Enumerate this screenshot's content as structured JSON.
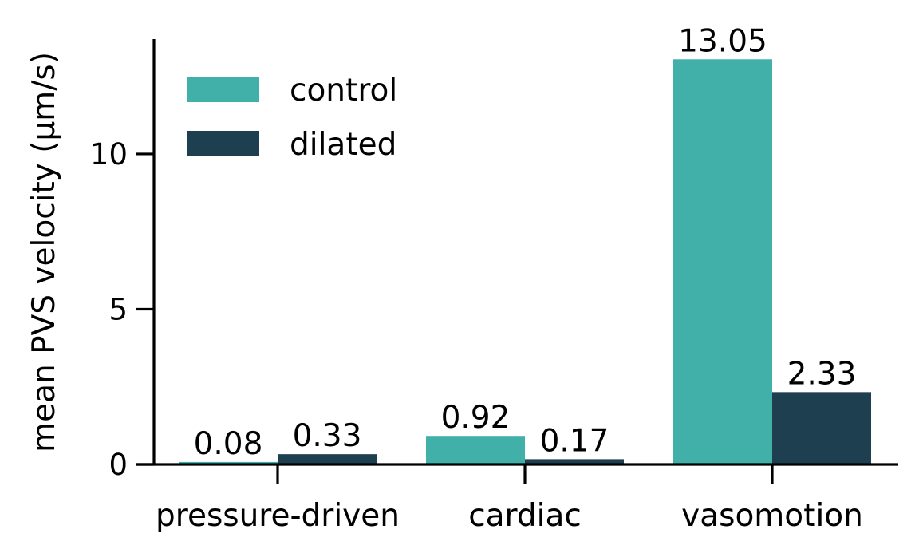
{
  "chart_data": {
    "type": "bar",
    "categories": [
      "pressure-driven",
      "cardiac",
      "vasomotion"
    ],
    "series": [
      {
        "name": "control",
        "color": "#41b0a8",
        "values": [
          0.08,
          0.92,
          13.05
        ]
      },
      {
        "name": "dilated",
        "color": "#1e3f4f",
        "values": [
          0.33,
          0.17,
          2.33
        ]
      }
    ],
    "value_labels": {
      "control": [
        "0.08",
        "0.92",
        "13.05"
      ],
      "dilated": [
        "0.33",
        "0.17",
        "2.33"
      ]
    },
    "title": "",
    "xlabel": "",
    "ylabel": "mean PVS velocity (μm/s)",
    "ylim": [
      0,
      13.7
    ],
    "yticks": [
      0,
      5,
      10
    ],
    "ytick_labels": [
      "0",
      "5",
      "10"
    ],
    "grid": false,
    "legend_position": "upper-left"
  }
}
